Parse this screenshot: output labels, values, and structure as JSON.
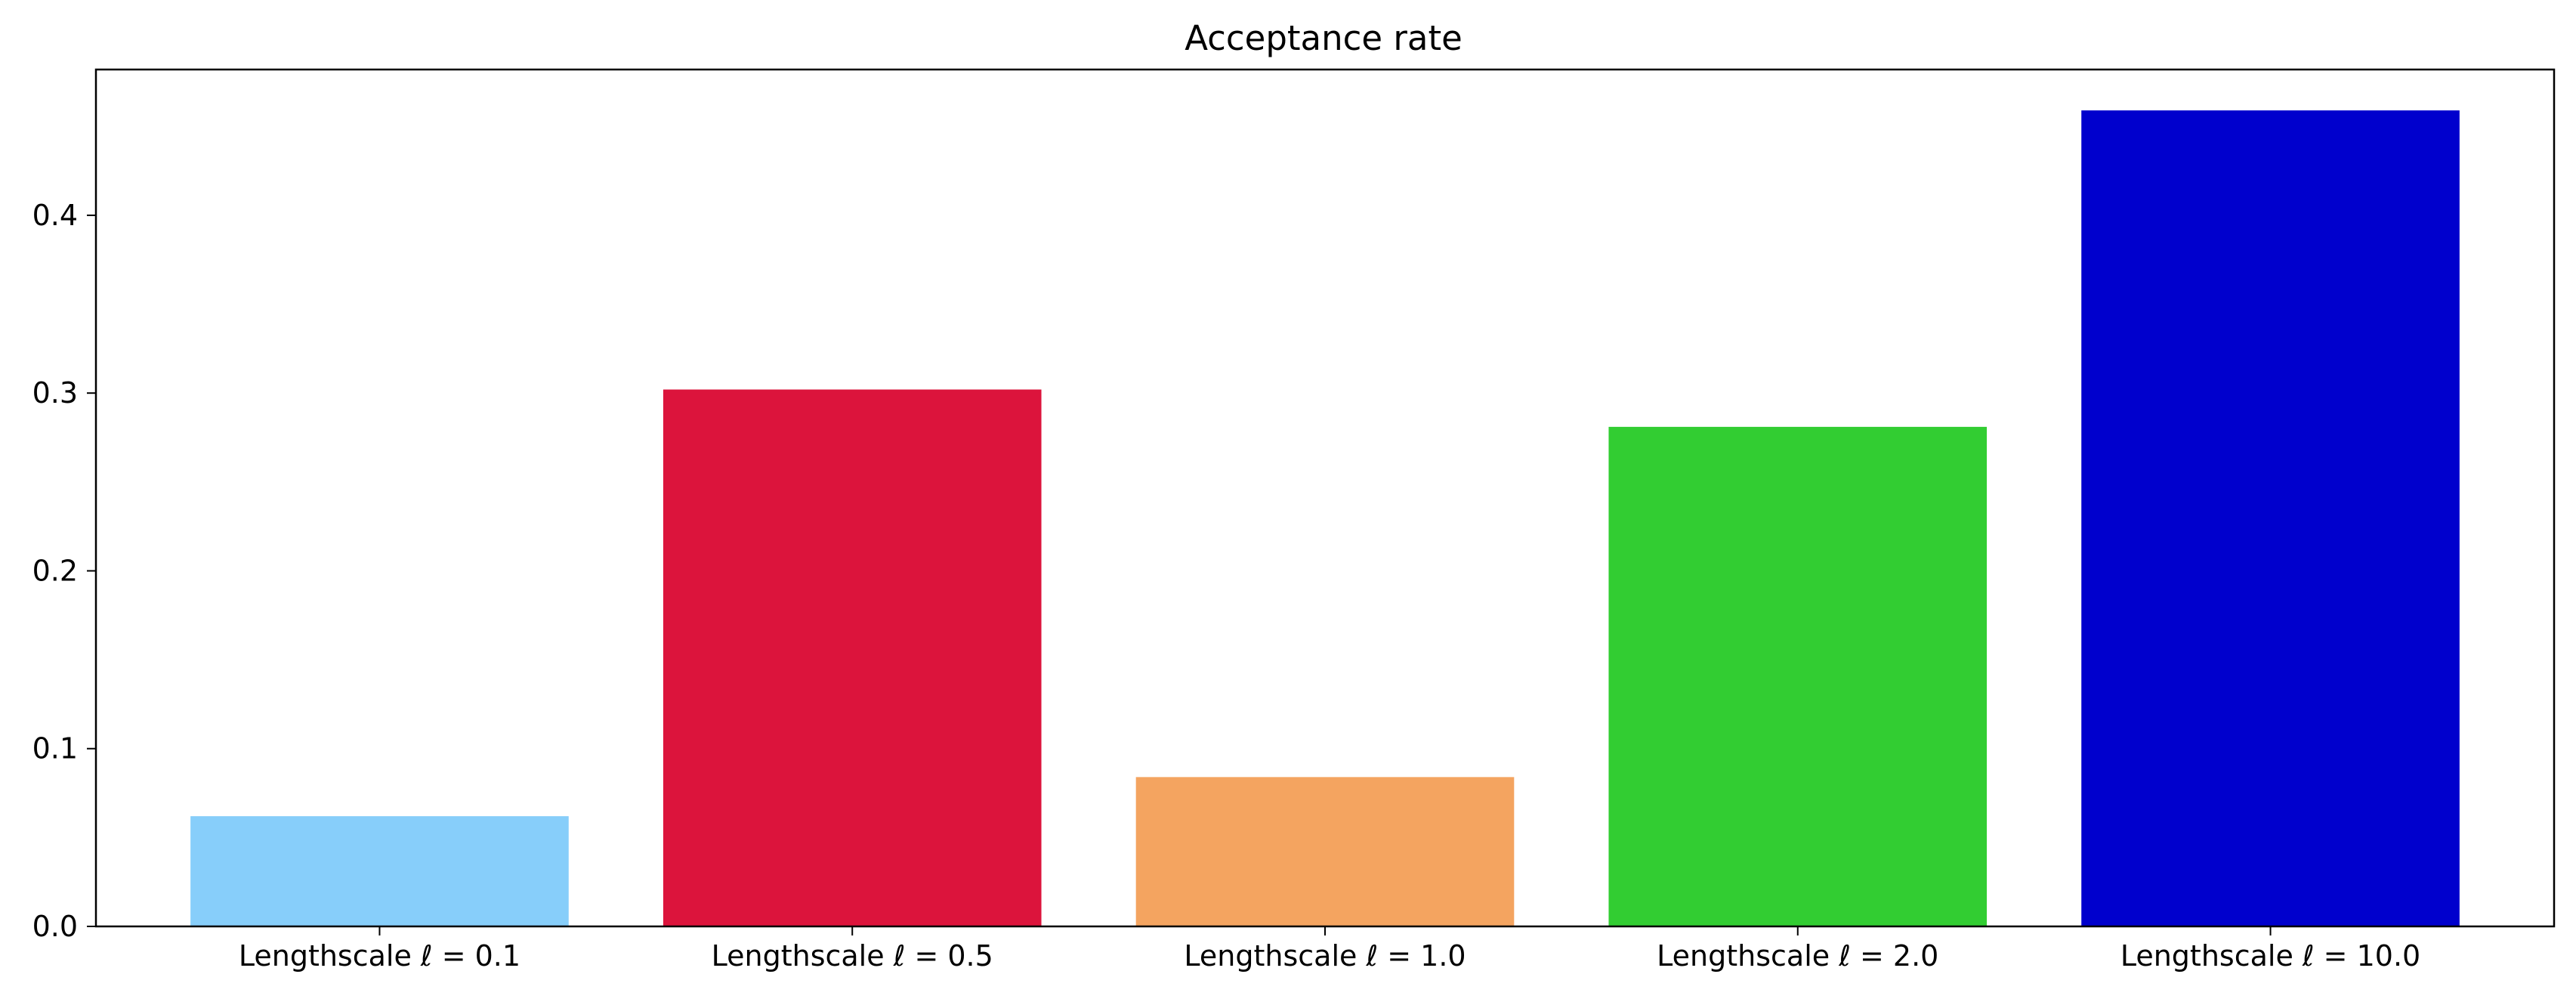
{
  "chart_data": {
    "type": "bar",
    "title": "Acceptance rate",
    "xlabel": "",
    "ylabel": "",
    "categories": [
      "Lengthscale ℓ = 0.1",
      "Lengthscale ℓ = 0.5",
      "Lengthscale ℓ = 1.0",
      "Lengthscale ℓ = 2.0",
      "Lengthscale ℓ = 10.0"
    ],
    "values": [
      0.062,
      0.302,
      0.084,
      0.281,
      0.459
    ],
    "colors": [
      "#87CEFA",
      "#DC143C",
      "#F4A460",
      "#32CD32",
      "#0000CD"
    ],
    "ylim": [
      0,
      0.482
    ],
    "yticks": [
      0.0,
      0.1,
      0.2,
      0.3,
      0.4
    ],
    "ytick_labels": [
      "0.0",
      "0.1",
      "0.2",
      "0.3",
      "0.4"
    ],
    "grid": false,
    "legend": "none"
  }
}
